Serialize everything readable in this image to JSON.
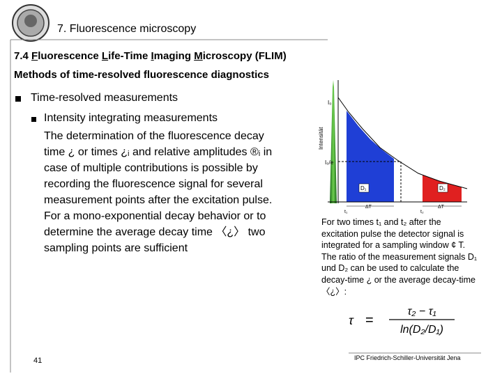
{
  "header": {
    "title": "7. Fluorescence microscopy"
  },
  "heading": {
    "line1": [
      "7.4 ",
      "F",
      "luorescence ",
      "L",
      "ife-Time ",
      "I",
      "maging ",
      "M",
      "icroscopy (FLIM)"
    ],
    "line2": "Methods of time-resolved fluorescence diagnostics"
  },
  "bullet": "Time-resolved measurements",
  "sub_bullet": {
    "title": "Intensity integrating measurements",
    "lines": [
      "The determination of the fluorescence decay",
      "time ¿ or times ¿ᵢ and relative amplitudes ®ᵢ in",
      "case of multiple contributions is possible by",
      "recording the fluorescence signal for several",
      "measurement points after the excitation pulse.",
      "For a mono-exponential decay behavior or to",
      "determine the average decay time 〈¿〉 two",
      "sampling points are sufficient"
    ]
  },
  "figure": {
    "labels": {
      "i0": "I₀",
      "i0e": "I₀/e",
      "axis": "Intensität",
      "d1": "D₁",
      "d2": "D₂",
      "t1": "t₁",
      "dt1": "ΔT",
      "t2": "t₂",
      "dt2": "ΔT"
    }
  },
  "caption": [
    "For two times t₁ and t₂ after the",
    "excitation pulse the detector signal is",
    "integrated for a sampling window ¢ T.",
    "The ratio of the measurement signals D₁",
    "und D₂ can be used to calculate the",
    "decay-time ¿ or the average decay-time",
    "〈¿〉:"
  ],
  "formula": {
    "lhs": "τ",
    "eq": "=",
    "numerator": "τ₂ − τ₁",
    "denominator": "ln(D₂/D₁)"
  },
  "footer": {
    "page": "41",
    "institute": "IPC Friedrich-Schiller-Universität Jena"
  }
}
